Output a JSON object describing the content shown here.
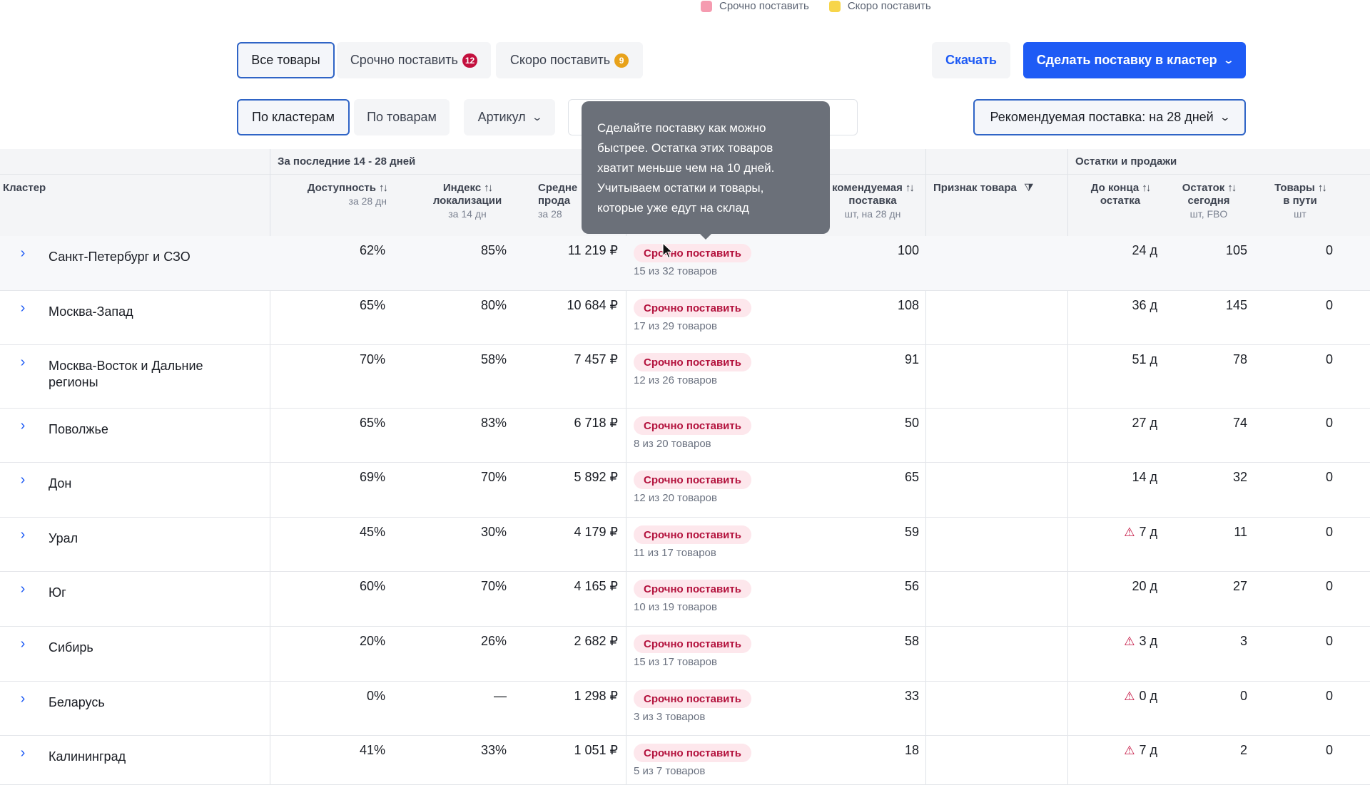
{
  "legend": {
    "urgent": {
      "label": "Срочно поставить",
      "color": "#f59bb0"
    },
    "soon": {
      "label": "Скоро поставить",
      "color": "#f7d54a"
    }
  },
  "tabs": {
    "all": "Все товары",
    "urgent": {
      "label": "Срочно поставить",
      "count": "12",
      "color": "#c3103e"
    },
    "soon": {
      "label": "Скоро поставить",
      "count": "9",
      "color": "#e8a21a"
    }
  },
  "actions": {
    "download": "Скачать",
    "make_supply": "Сделать поставку в кластер"
  },
  "view": {
    "by_clusters": "По кластерам",
    "by_products": "По товарам",
    "article": "Артикул",
    "recommend_period": "Рекомендуемая поставка: на 28 дней"
  },
  "tooltip": {
    "text_1": "Сделайте поставку как можно",
    "text_2": "быстрее. Остатка этих товаров",
    "text_3": "хватит меньше чем на 10 дней.",
    "text_4": "Учитываем остатки и товары,",
    "text_5": "которые уже едут на склад"
  },
  "table": {
    "group_period": "За последние 14 - 28 дней",
    "group_stock": "Остатки и продажи",
    "headers": {
      "cluster": "Кластер",
      "availability": "Доступность",
      "availability_sub": "за 28 дн",
      "loc_index_1": "Индекс",
      "loc_index_2": "локализации",
      "loc_index_sub": "за 14 дн",
      "avg_sales_1": "Средне",
      "avg_sales_2": "прода",
      "avg_sales_sub": "за 28",
      "rec_supply_1": "комендуемая",
      "rec_supply_2": "поставка",
      "rec_supply_sub": "шт, на 28 дн",
      "product_flag": "Признак товара",
      "days_left_1": "До конца",
      "days_left_2": "остатка",
      "stock_today_1": "Остаток",
      "stock_today_2": "сегодня",
      "stock_today_sub": "шт, FBO",
      "in_transit_1": "Товары",
      "in_transit_2": "в пути",
      "in_transit_sub": "шт"
    },
    "rows": [
      {
        "name": "Санкт-Петербург и СЗО",
        "availability": "62%",
        "loc_index": "85%",
        "avg_sales": "11 219 ₽",
        "status": "Срочно поставить",
        "status_sub": "15 из 32 товаров",
        "rec": "100",
        "days_left": "24 д",
        "stock": "105",
        "transit": "0"
      },
      {
        "name": "Москва-Запад",
        "availability": "65%",
        "loc_index": "80%",
        "avg_sales": "10 684 ₽",
        "status": "Срочно поставить",
        "status_sub": "17 из 29 товаров",
        "rec": "108",
        "days_left": "36 д",
        "stock": "145",
        "transit": "0"
      },
      {
        "name": "Москва-Восток и Дальние регионы",
        "availability": "70%",
        "loc_index": "58%",
        "avg_sales": "7 457 ₽",
        "status": "Срочно поставить",
        "status_sub": "12 из 26 товаров",
        "rec": "91",
        "days_left": "51 д",
        "stock": "78",
        "transit": "0"
      },
      {
        "name": "Поволжье",
        "availability": "65%",
        "loc_index": "83%",
        "avg_sales": "6 718 ₽",
        "status": "Срочно поставить",
        "status_sub": "8 из 20 товаров",
        "rec": "50",
        "days_left": "27 д",
        "stock": "74",
        "transit": "0"
      },
      {
        "name": "Дон",
        "availability": "69%",
        "loc_index": "70%",
        "avg_sales": "5 892 ₽",
        "status": "Срочно поставить",
        "status_sub": "12 из 20 товаров",
        "rec": "65",
        "days_left": "14 д",
        "stock": "32",
        "transit": "0"
      },
      {
        "name": "Урал",
        "availability": "45%",
        "loc_index": "30%",
        "avg_sales": "4 179 ₽",
        "status": "Срочно поставить",
        "status_sub": "11 из 17 товаров",
        "rec": "59",
        "days_left": "7 д",
        "stock": "11",
        "transit": "0",
        "warn": true
      },
      {
        "name": "Юг",
        "availability": "60%",
        "loc_index": "70%",
        "avg_sales": "4 165 ₽",
        "status": "Срочно поставить",
        "status_sub": "10 из 19 товаров",
        "rec": "56",
        "days_left": "20 д",
        "stock": "27",
        "transit": "0"
      },
      {
        "name": "Сибирь",
        "availability": "20%",
        "loc_index": "26%",
        "avg_sales": "2 682 ₽",
        "status": "Срочно поставить",
        "status_sub": "15 из 17 товаров",
        "rec": "58",
        "days_left": "3 д",
        "stock": "3",
        "transit": "0",
        "warn": true
      },
      {
        "name": "Беларусь",
        "availability": "0%",
        "loc_index": "—",
        "avg_sales": "1 298 ₽",
        "status": "Срочно поставить",
        "status_sub": "3 из 3 товаров",
        "rec": "33",
        "days_left": "0 д",
        "stock": "0",
        "transit": "0",
        "warn": true
      },
      {
        "name": "Калининград",
        "availability": "41%",
        "loc_index": "33%",
        "avg_sales": "1 051 ₽",
        "status": "Срочно поставить",
        "status_sub": "5 из 7 товаров",
        "rec": "18",
        "days_left": "7 д",
        "stock": "2",
        "transit": "0",
        "warn": true
      }
    ]
  }
}
